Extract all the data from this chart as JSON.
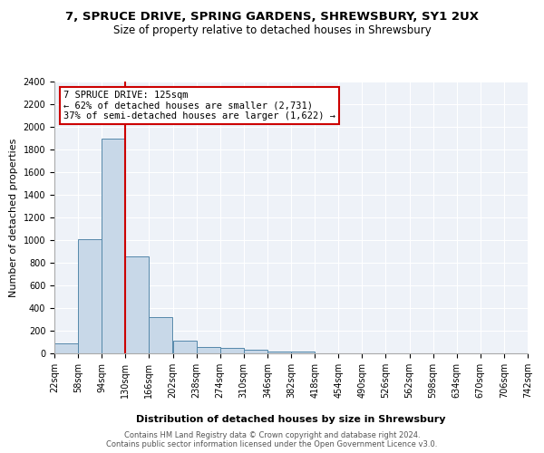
{
  "title_line1": "7, SPRUCE DRIVE, SPRING GARDENS, SHREWSBURY, SY1 2UX",
  "title_line2": "Size of property relative to detached houses in Shrewsbury",
  "xlabel": "Distribution of detached houses by size in Shrewsbury",
  "ylabel": "Number of detached properties",
  "bar_values": [
    90,
    1010,
    1900,
    860,
    320,
    115,
    55,
    50,
    35,
    20,
    20,
    0,
    0,
    0,
    0,
    0,
    0,
    0,
    0,
    0
  ],
  "bin_edges": [
    22,
    58,
    94,
    130,
    166,
    202,
    238,
    274,
    310,
    346,
    382,
    418,
    454,
    490,
    526,
    562,
    598,
    634,
    670,
    706,
    742
  ],
  "bin_labels": [
    "22sqm",
    "58sqm",
    "94sqm",
    "130sqm",
    "166sqm",
    "202sqm",
    "238sqm",
    "274sqm",
    "310sqm",
    "346sqm",
    "382sqm",
    "418sqm",
    "454sqm",
    "490sqm",
    "526sqm",
    "562sqm",
    "598sqm",
    "634sqm",
    "670sqm",
    "706sqm",
    "742sqm"
  ],
  "bar_color": "#c8d8e8",
  "bar_edge_color": "#5588aa",
  "vline_x": 130,
  "vline_color": "#cc0000",
  "annotation_text": "7 SPRUCE DRIVE: 125sqm\n← 62% of detached houses are smaller (2,731)\n37% of semi-detached houses are larger (1,622) →",
  "annotation_box_color": "white",
  "annotation_box_edge": "#cc0000",
  "ylim": [
    0,
    2400
  ],
  "yticks": [
    0,
    200,
    400,
    600,
    800,
    1000,
    1200,
    1400,
    1600,
    1800,
    2000,
    2200,
    2400
  ],
  "background_color": "#eef2f8",
  "footer_text": "Contains HM Land Registry data © Crown copyright and database right 2024.\nContains public sector information licensed under the Open Government Licence v3.0.",
  "title_fontsize": 9.5,
  "subtitle_fontsize": 8.5,
  "axis_label_fontsize": 8,
  "tick_fontsize": 7,
  "annotation_fontsize": 7.5,
  "footer_fontsize": 6
}
